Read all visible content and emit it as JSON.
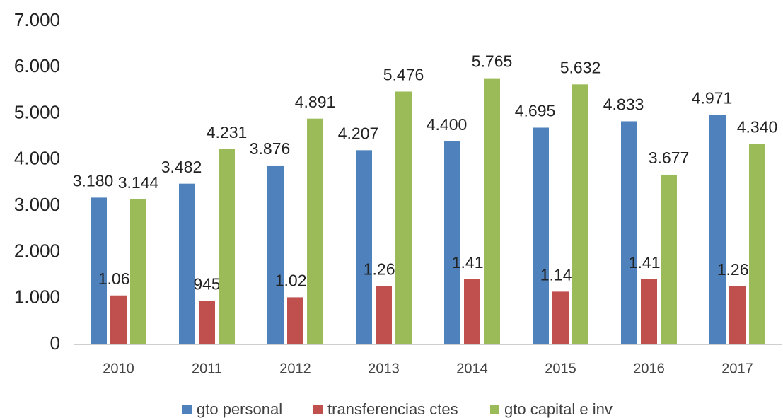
{
  "chart_data": {
    "type": "bar",
    "categories": [
      "2010",
      "2011",
      "2012",
      "2013",
      "2014",
      "2015",
      "2016",
      "2017"
    ],
    "series": [
      {
        "name": "gto personal",
        "color": "#4f81bd",
        "values": [
          3180,
          3482,
          3876,
          4207,
          4400,
          4695,
          4833,
          4971
        ],
        "value_labels": [
          "3.180",
          "3.482",
          "3.876",
          "4.207",
          "4.400",
          "4.695",
          "4.833",
          "4.971"
        ]
      },
      {
        "name": "transferencias ctes",
        "color": "#c0504d",
        "values": [
          1061,
          945,
          1020,
          1262,
          1413,
          1143,
          1410,
          1260
        ],
        "value_labels": [
          "1.061",
          "945",
          "1.020",
          "1.262",
          "1.413",
          "1.143",
          "1.410",
          "1.260"
        ]
      },
      {
        "name": "gto capital e inv",
        "color": "#9bbb59",
        "values": [
          3144,
          4231,
          4891,
          5476,
          5765,
          5632,
          3677,
          4340
        ],
        "value_labels": [
          "3.144",
          "4.231",
          "4.891",
          "5.476",
          "5.765",
          "5.632",
          "3.677",
          "4.340"
        ]
      }
    ],
    "ylim": [
      0,
      7000
    ],
    "yticks": [
      0,
      {
        "value": 1000,
        "label": "1.000"
      },
      {
        "value": 2000,
        "label": "2.000"
      },
      {
        "value": 3000,
        "label": "3.000"
      },
      {
        "value": 4000,
        "label": "4.000"
      },
      {
        "value": 5000,
        "label": "5.000"
      },
      {
        "value": 6000,
        "label": "6.000"
      },
      {
        "value": 7000,
        "label": "7.000"
      }
    ],
    "grid": false,
    "legend": "bottom"
  }
}
